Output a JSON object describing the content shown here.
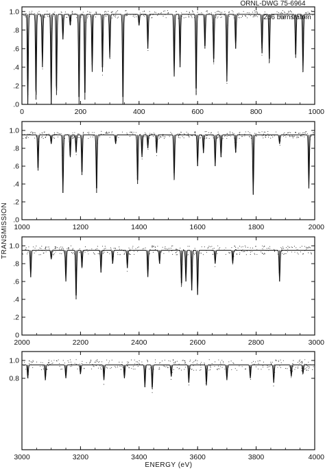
{
  "figure": {
    "drawing_id": "ORNL-DWG 75-6964",
    "thickness_label": "266 barns/atom",
    "ylabel": "TRANSMISSION",
    "xlabel": "ENERGY (eV)"
  },
  "chart_data": [
    {
      "type": "line",
      "xlim": [
        0,
        1000
      ],
      "ylim": [
        0,
        1.05
      ],
      "x_ticks": [
        0,
        200,
        400,
        600,
        800,
        1000
      ],
      "y_ticks": [
        0,
        0.2,
        0.4,
        0.6,
        0.8,
        1.0
      ],
      "y_tick_labels": [
        ".0",
        ".2",
        ".4",
        ".6",
        ".8",
        "1.0"
      ],
      "baseline": 0.97,
      "scatter_amplitude": 0.04,
      "dips": [
        {
          "x": 20,
          "y": 0.0
        },
        {
          "x": 48,
          "y": 0.05
        },
        {
          "x": 70,
          "y": 0.4
        },
        {
          "x": 100,
          "y": 0.0
        },
        {
          "x": 118,
          "y": 0.1
        },
        {
          "x": 140,
          "y": 0.7
        },
        {
          "x": 165,
          "y": 0.85
        },
        {
          "x": 195,
          "y": 0.0
        },
        {
          "x": 215,
          "y": 0.05
        },
        {
          "x": 240,
          "y": 0.35
        },
        {
          "x": 275,
          "y": 0.35
        },
        {
          "x": 300,
          "y": 0.5
        },
        {
          "x": 345,
          "y": 0.0
        },
        {
          "x": 400,
          "y": 0.85
        },
        {
          "x": 430,
          "y": 0.6
        },
        {
          "x": 520,
          "y": 0.3
        },
        {
          "x": 540,
          "y": 0.4
        },
        {
          "x": 595,
          "y": 0.1
        },
        {
          "x": 625,
          "y": 0.6
        },
        {
          "x": 655,
          "y": 0.45
        },
        {
          "x": 700,
          "y": 0.25
        },
        {
          "x": 730,
          "y": 0.6
        },
        {
          "x": 820,
          "y": 0.55
        },
        {
          "x": 845,
          "y": 0.45
        },
        {
          "x": 935,
          "y": 0.5
        },
        {
          "x": 960,
          "y": 0.35
        }
      ]
    },
    {
      "type": "line",
      "xlim": [
        1000,
        2000
      ],
      "ylim": [
        0,
        1.1
      ],
      "x_ticks": [
        1000,
        1200,
        1400,
        1600,
        1800,
        2000
      ],
      "y_ticks": [
        0,
        0.2,
        0.4,
        0.6,
        0.8,
        1.0
      ],
      "y_tick_labels": [
        ".0",
        ".2",
        ".4",
        ".6",
        ".8",
        "1.0"
      ],
      "baseline": 0.95,
      "scatter_amplitude": 0.04,
      "dips": [
        {
          "x": 1055,
          "y": 0.55
        },
        {
          "x": 1100,
          "y": 0.85
        },
        {
          "x": 1140,
          "y": 0.3
        },
        {
          "x": 1165,
          "y": 0.7
        },
        {
          "x": 1185,
          "y": 0.75
        },
        {
          "x": 1205,
          "y": 0.5
        },
        {
          "x": 1255,
          "y": 0.3
        },
        {
          "x": 1320,
          "y": 0.85
        },
        {
          "x": 1395,
          "y": 0.4
        },
        {
          "x": 1410,
          "y": 0.7
        },
        {
          "x": 1430,
          "y": 0.8
        },
        {
          "x": 1460,
          "y": 0.75
        },
        {
          "x": 1520,
          "y": 0.45
        },
        {
          "x": 1600,
          "y": 0.6
        },
        {
          "x": 1620,
          "y": 0.75
        },
        {
          "x": 1660,
          "y": 0.6
        },
        {
          "x": 1680,
          "y": 0.7
        },
        {
          "x": 1730,
          "y": 0.75
        },
        {
          "x": 1790,
          "y": 0.28
        },
        {
          "x": 1880,
          "y": 0.85
        },
        {
          "x": 1980,
          "y": 0.35
        }
      ]
    },
    {
      "type": "line",
      "xlim": [
        2000,
        3000
      ],
      "ylim": [
        0,
        1.1
      ],
      "x_ticks": [
        2000,
        2200,
        2400,
        2600,
        2800,
        3000
      ],
      "y_ticks": [
        0,
        0.2,
        0.4,
        0.6,
        0.8,
        1.0
      ],
      "y_tick_labels": [
        "0",
        ".2",
        ".4",
        ".6",
        ".8",
        "1.0"
      ],
      "baseline": 0.95,
      "scatter_amplitude": 0.05,
      "dips": [
        {
          "x": 2030,
          "y": 0.65
        },
        {
          "x": 2100,
          "y": 0.85
        },
        {
          "x": 2150,
          "y": 0.6
        },
        {
          "x": 2185,
          "y": 0.4
        },
        {
          "x": 2205,
          "y": 0.75
        },
        {
          "x": 2270,
          "y": 0.7
        },
        {
          "x": 2310,
          "y": 0.8
        },
        {
          "x": 2360,
          "y": 0.75
        },
        {
          "x": 2430,
          "y": 0.65
        },
        {
          "x": 2470,
          "y": 0.8
        },
        {
          "x": 2545,
          "y": 0.55
        },
        {
          "x": 2560,
          "y": 0.6
        },
        {
          "x": 2580,
          "y": 0.5
        },
        {
          "x": 2600,
          "y": 0.45
        },
        {
          "x": 2660,
          "y": 0.8
        },
        {
          "x": 2720,
          "y": 0.8
        },
        {
          "x": 2880,
          "y": 0.6
        }
      ]
    },
    {
      "type": "line",
      "xlim": [
        3000,
        4000
      ],
      "ylim": [
        0,
        1.1
      ],
      "x_ticks": [
        3000,
        3200,
        3400,
        3600,
        3800,
        4000
      ],
      "y_ticks": [
        0.8,
        1.0
      ],
      "y_tick_labels": [
        "0.8",
        "1.0"
      ],
      "baseline": 0.95,
      "scatter_amplitude": 0.06,
      "dips": [
        {
          "x": 3020,
          "y": 0.8
        },
        {
          "x": 3080,
          "y": 0.78
        },
        {
          "x": 3150,
          "y": 0.8
        },
        {
          "x": 3200,
          "y": 0.85
        },
        {
          "x": 3280,
          "y": 0.78
        },
        {
          "x": 3350,
          "y": 0.8
        },
        {
          "x": 3420,
          "y": 0.7
        },
        {
          "x": 3445,
          "y": 0.68
        },
        {
          "x": 3510,
          "y": 0.82
        },
        {
          "x": 3570,
          "y": 0.75
        },
        {
          "x": 3630,
          "y": 0.72
        },
        {
          "x": 3700,
          "y": 0.78
        },
        {
          "x": 3780,
          "y": 0.8
        },
        {
          "x": 3860,
          "y": 0.75
        },
        {
          "x": 3920,
          "y": 0.82
        },
        {
          "x": 3960,
          "y": 0.85
        }
      ]
    }
  ]
}
